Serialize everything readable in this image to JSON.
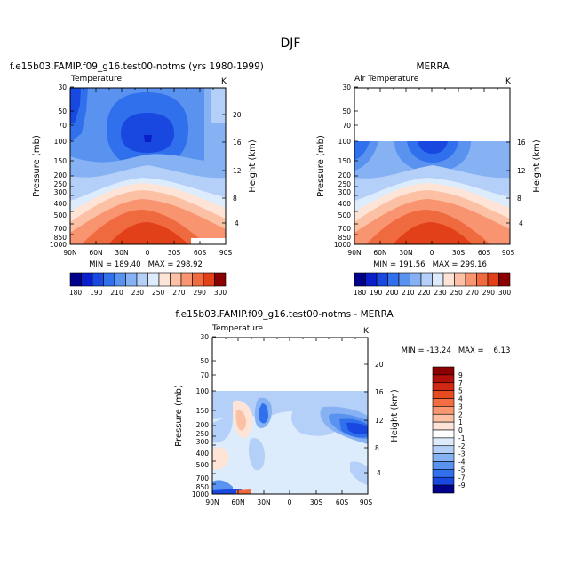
{
  "figure_title": "DJF",
  "chart_data": [
    {
      "type": "contour",
      "id": "model",
      "title": "f.e15b03.FAMIP.f09_g16.test00-notms (yrs 1980-1999)",
      "left_label": "Temperature",
      "unit": "K",
      "ylabel": "Pressure (mb)",
      "y2label": "Height (km)",
      "x_ticks": [
        "90N",
        "60N",
        "30N",
        "0",
        "30S",
        "60S",
        "90S"
      ],
      "y_ticks": [
        30,
        50,
        70,
        100,
        150,
        200,
        250,
        300,
        400,
        500,
        700,
        850,
        1000
      ],
      "y2_ticks": [
        4,
        8,
        12,
        16,
        20
      ],
      "ylim": [
        1000,
        30
      ],
      "stats": "MIN = 189.40   MAX = 298.92",
      "min": 189.4,
      "max": 298.92,
      "colorbar": {
        "orientation": "horizontal",
        "levels": [
          180,
          190,
          200,
          210,
          220,
          230,
          240,
          250,
          260,
          270,
          280,
          290,
          300
        ],
        "labels": [
          "180",
          "190",
          "210",
          "230",
          "250",
          "270",
          "290",
          "300"
        ],
        "colors": [
          "#00008b",
          "#0a1fcc",
          "#1848e0",
          "#3070ec",
          "#5a92f0",
          "#86b2f4",
          "#b4d0f8",
          "#dcecfc",
          "#fde4d6",
          "#fcc0a4",
          "#f89470",
          "#f06a40",
          "#e24018",
          "#8b0000"
        ]
      }
    },
    {
      "type": "contour",
      "id": "merra",
      "title": "MERRA",
      "left_label": "Air Temperature",
      "unit": "K",
      "ylabel": "Pressure (mb)",
      "y2label": "Height (km)",
      "x_ticks": [
        "90N",
        "60N",
        "30N",
        "0",
        "30S",
        "60S",
        "90S"
      ],
      "y_ticks": [
        30,
        50,
        70,
        100,
        150,
        200,
        250,
        300,
        400,
        500,
        700,
        850,
        1000
      ],
      "y2_ticks": [
        4,
        8,
        12,
        16
      ],
      "ylim": [
        1000,
        30
      ],
      "data_top_mb": 100,
      "stats": "MIN = 191.56   MAX = 299.16",
      "min": 191.56,
      "max": 299.16,
      "colorbar": {
        "orientation": "horizontal",
        "levels": [
          180,
          190,
          200,
          210,
          220,
          230,
          240,
          250,
          260,
          270,
          280,
          290,
          300
        ],
        "labels": [
          "180",
          "190",
          "200",
          "210",
          "220",
          "230",
          "250",
          "270",
          "290",
          "300"
        ],
        "colors": [
          "#00008b",
          "#0a1fcc",
          "#1848e0",
          "#3070ec",
          "#5a92f0",
          "#86b2f4",
          "#b4d0f8",
          "#dcecfc",
          "#fde4d6",
          "#fcc0a4",
          "#f89470",
          "#f06a40",
          "#e24018",
          "#8b0000"
        ]
      }
    },
    {
      "type": "contour",
      "id": "diff",
      "title": "f.e15b03.FAMIP.f09_g16.test00-notms - MERRA",
      "left_label": "Temperature",
      "unit": "K",
      "ylabel": "Pressure (mb)",
      "y2label": "Height (km)",
      "x_ticks": [
        "90N",
        "60N",
        "30N",
        "0",
        "30S",
        "60S",
        "90S"
      ],
      "y_ticks": [
        30,
        50,
        70,
        100,
        150,
        200,
        250,
        300,
        400,
        500,
        700,
        850,
        1000
      ],
      "y2_ticks": [
        4,
        8,
        12,
        16,
        20
      ],
      "ylim": [
        1000,
        30
      ],
      "data_top_mb": 100,
      "stats": "MIN = -13.24   MAX =    6.13",
      "min": -13.24,
      "max": 6.13,
      "colorbar": {
        "orientation": "vertical",
        "labels": [
          "9",
          "7",
          "5",
          "4",
          "3",
          "2",
          "1",
          "0",
          "-1",
          "-2",
          "-3",
          "-4",
          "-5",
          "-7",
          "-9"
        ],
        "colors": [
          "#8b0000",
          "#b01008",
          "#d02812",
          "#e84a22",
          "#f26e42",
          "#f89870",
          "#fcc0a4",
          "#fde4d6",
          "#ffffff",
          "#dcecfc",
          "#b4d0f8",
          "#86b2f4",
          "#5a92f0",
          "#3070ec",
          "#1848e0",
          "#00008b"
        ]
      }
    }
  ]
}
